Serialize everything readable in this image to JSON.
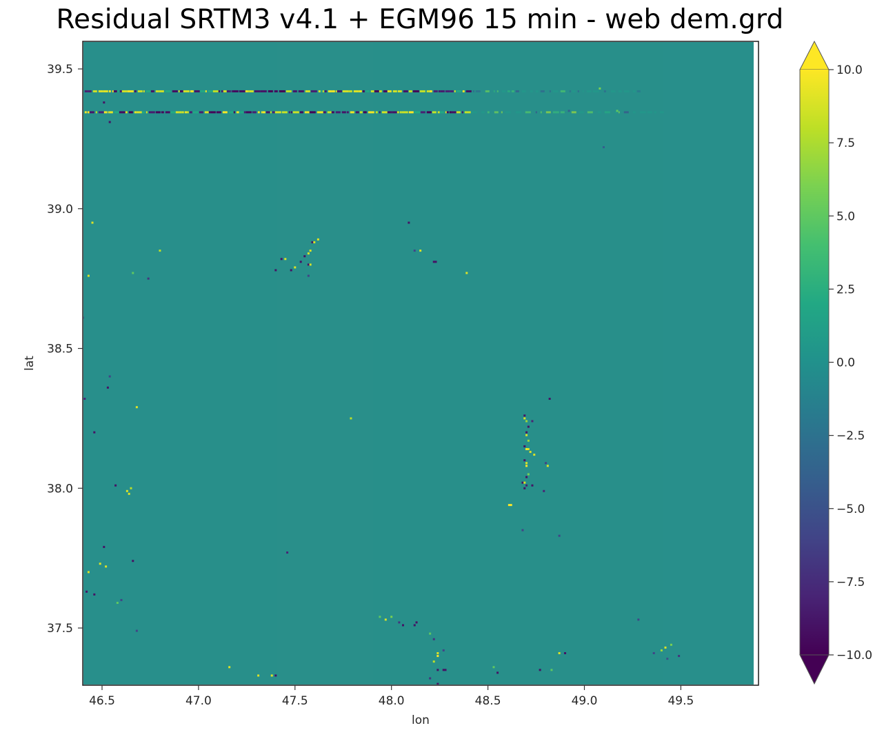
{
  "chart_data": {
    "type": "heatmap",
    "title": "Residual SRTM3 v4.1 + EGM96 15 min - web dem.grd",
    "xlabel": "lon",
    "ylabel": "lat",
    "xlim": [
      46.4,
      49.9
    ],
    "ylim": [
      37.3,
      39.6
    ],
    "xticks": [
      46.5,
      47.0,
      47.5,
      48.0,
      48.5,
      49.0,
      49.5
    ],
    "xtick_labels": [
      "46.5",
      "47.0",
      "47.5",
      "48.0",
      "48.5",
      "49.0",
      "49.5"
    ],
    "yticks": [
      37.5,
      38.0,
      38.5,
      39.0,
      39.5
    ],
    "ytick_labels": [
      "37.5",
      "38.0",
      "38.5",
      "39.0",
      "39.5"
    ],
    "colorbar": {
      "cmap": "viridis",
      "vmin": -10.0,
      "vmax": 10.0,
      "extend": "both",
      "ticks": [
        -10.0,
        -7.5,
        -5.0,
        -2.5,
        0.0,
        2.5,
        5.0,
        7.5,
        10.0
      ],
      "tick_labels": [
        "−10.0",
        "−7.5",
        "−5.0",
        "−2.5",
        "0.0",
        "2.5",
        "5.0",
        "7.5",
        "10.0"
      ]
    },
    "background_value": 0.0,
    "grid": false,
    "streaks": [
      {
        "lat": 39.42,
        "lon_start": 46.41,
        "lon_end": 49.3,
        "description": "alternating high/low residual row (strong west of ~48.4)"
      },
      {
        "lat": 39.345,
        "lon_start": 46.41,
        "lon_end": 49.4,
        "description": "alternating high/low residual row (strong west of ~48.4)"
      }
    ],
    "points": [
      {
        "lon": 46.51,
        "lat": 39.38,
        "v": -9
      },
      {
        "lon": 46.54,
        "lat": 39.31,
        "v": -9
      },
      {
        "lon": 46.45,
        "lat": 38.95,
        "v": 9
      },
      {
        "lon": 46.8,
        "lat": 38.85,
        "v": 8
      },
      {
        "lon": 46.43,
        "lat": 38.76,
        "v": 9
      },
      {
        "lon": 46.74,
        "lat": 38.75,
        "v": -7
      },
      {
        "lon": 46.66,
        "lat": 38.77,
        "v": 5
      },
      {
        "lon": 46.4,
        "lat": 38.61,
        "v": -8
      },
      {
        "lon": 46.53,
        "lat": 38.36,
        "v": -9
      },
      {
        "lon": 46.54,
        "lat": 38.4,
        "v": -6
      },
      {
        "lon": 46.68,
        "lat": 38.29,
        "v": 9
      },
      {
        "lon": 46.41,
        "lat": 38.32,
        "v": -8
      },
      {
        "lon": 46.46,
        "lat": 38.2,
        "v": -9
      },
      {
        "lon": 46.57,
        "lat": 38.01,
        "v": -9
      },
      {
        "lon": 46.63,
        "lat": 37.99,
        "v": 9
      },
      {
        "lon": 46.64,
        "lat": 37.98,
        "v": 9
      },
      {
        "lon": 46.65,
        "lat": 38.0,
        "v": 8
      },
      {
        "lon": 46.51,
        "lat": 37.79,
        "v": -9
      },
      {
        "lon": 46.49,
        "lat": 37.73,
        "v": 9
      },
      {
        "lon": 46.52,
        "lat": 37.72,
        "v": 9
      },
      {
        "lon": 46.43,
        "lat": 37.7,
        "v": 9
      },
      {
        "lon": 46.66,
        "lat": 37.74,
        "v": -9
      },
      {
        "lon": 46.42,
        "lat": 37.63,
        "v": -9
      },
      {
        "lon": 46.46,
        "lat": 37.62,
        "v": -9
      },
      {
        "lon": 46.6,
        "lat": 37.6,
        "v": -6
      },
      {
        "lon": 46.58,
        "lat": 37.59,
        "v": 5
      },
      {
        "lon": 46.68,
        "lat": 37.49,
        "v": -6
      },
      {
        "lon": 47.16,
        "lat": 37.36,
        "v": 9
      },
      {
        "lon": 47.31,
        "lat": 37.33,
        "v": 9
      },
      {
        "lon": 47.38,
        "lat": 37.33,
        "v": 9
      },
      {
        "lon": 47.4,
        "lat": 37.33,
        "v": -9
      },
      {
        "lon": 47.46,
        "lat": 37.77,
        "v": -8
      },
      {
        "lon": 47.43,
        "lat": 38.82,
        "v": -9
      },
      {
        "lon": 47.45,
        "lat": 38.82,
        "v": 9
      },
      {
        "lon": 47.4,
        "lat": 38.78,
        "v": -9
      },
      {
        "lon": 47.48,
        "lat": 38.78,
        "v": -9
      },
      {
        "lon": 47.5,
        "lat": 38.79,
        "v": 9
      },
      {
        "lon": 47.53,
        "lat": 38.81,
        "v": -9
      },
      {
        "lon": 47.55,
        "lat": 38.83,
        "v": -9
      },
      {
        "lon": 47.57,
        "lat": 38.84,
        "v": 9
      },
      {
        "lon": 47.58,
        "lat": 38.85,
        "v": 9
      },
      {
        "lon": 47.57,
        "lat": 38.8,
        "v": -9
      },
      {
        "lon": 47.58,
        "lat": 38.8,
        "v": 9
      },
      {
        "lon": 47.57,
        "lat": 38.76,
        "v": -6
      },
      {
        "lon": 47.59,
        "lat": 38.88,
        "v": -9
      },
      {
        "lon": 47.6,
        "lat": 38.88,
        "v": 9
      },
      {
        "lon": 47.62,
        "lat": 38.89,
        "v": 9
      },
      {
        "lon": 48.09,
        "lat": 38.95,
        "v": -9
      },
      {
        "lon": 48.12,
        "lat": 38.85,
        "v": -6
      },
      {
        "lon": 48.15,
        "lat": 38.85,
        "v": 9
      },
      {
        "lon": 48.22,
        "lat": 38.81,
        "v": -9
      },
      {
        "lon": 48.23,
        "lat": 38.81,
        "v": -9
      },
      {
        "lon": 48.39,
        "lat": 38.77,
        "v": 9
      },
      {
        "lon": 47.79,
        "lat": 38.25,
        "v": 8
      },
      {
        "lon": 48.82,
        "lat": 38.32,
        "v": -9
      },
      {
        "lon": 48.69,
        "lat": 38.26,
        "v": -9
      },
      {
        "lon": 48.69,
        "lat": 38.25,
        "v": 9
      },
      {
        "lon": 48.7,
        "lat": 38.24,
        "v": 7
      },
      {
        "lon": 48.73,
        "lat": 38.24,
        "v": -8
      },
      {
        "lon": 48.71,
        "lat": 38.22,
        "v": -9
      },
      {
        "lon": 48.7,
        "lat": 38.2,
        "v": -9
      },
      {
        "lon": 48.7,
        "lat": 38.19,
        "v": 9
      },
      {
        "lon": 48.71,
        "lat": 38.17,
        "v": 7
      },
      {
        "lon": 48.69,
        "lat": 38.15,
        "v": -9
      },
      {
        "lon": 48.7,
        "lat": 38.14,
        "v": 10
      },
      {
        "lon": 48.71,
        "lat": 38.14,
        "v": 9
      },
      {
        "lon": 48.72,
        "lat": 38.13,
        "v": 9
      },
      {
        "lon": 48.69,
        "lat": 38.1,
        "v": -9
      },
      {
        "lon": 48.7,
        "lat": 38.09,
        "v": 9
      },
      {
        "lon": 48.7,
        "lat": 38.08,
        "v": 10
      },
      {
        "lon": 48.74,
        "lat": 38.12,
        "v": 9
      },
      {
        "lon": 48.8,
        "lat": 38.09,
        "v": -6
      },
      {
        "lon": 48.81,
        "lat": 38.08,
        "v": 9
      },
      {
        "lon": 48.71,
        "lat": 38.05,
        "v": 6
      },
      {
        "lon": 48.7,
        "lat": 38.04,
        "v": -9
      },
      {
        "lon": 48.68,
        "lat": 38.02,
        "v": -9
      },
      {
        "lon": 48.69,
        "lat": 38.02,
        "v": 9
      },
      {
        "lon": 48.7,
        "lat": 38.01,
        "v": -8
      },
      {
        "lon": 48.69,
        "lat": 38.0,
        "v": -9
      },
      {
        "lon": 48.73,
        "lat": 38.01,
        "v": -9
      },
      {
        "lon": 48.79,
        "lat": 37.99,
        "v": -8
      },
      {
        "lon": 48.61,
        "lat": 37.94,
        "v": 10
      },
      {
        "lon": 48.62,
        "lat": 37.94,
        "v": 10
      },
      {
        "lon": 48.68,
        "lat": 37.85,
        "v": -6
      },
      {
        "lon": 48.87,
        "lat": 37.83,
        "v": -6
      },
      {
        "lon": 47.94,
        "lat": 37.54,
        "v": 5
      },
      {
        "lon": 47.97,
        "lat": 37.53,
        "v": 9
      },
      {
        "lon": 48.0,
        "lat": 37.54,
        "v": 6
      },
      {
        "lon": 48.04,
        "lat": 37.52,
        "v": -7
      },
      {
        "lon": 48.06,
        "lat": 37.51,
        "v": -9
      },
      {
        "lon": 48.12,
        "lat": 37.51,
        "v": -9
      },
      {
        "lon": 48.13,
        "lat": 37.52,
        "v": -9
      },
      {
        "lon": 48.2,
        "lat": 37.48,
        "v": 5
      },
      {
        "lon": 48.22,
        "lat": 37.46,
        "v": -7
      },
      {
        "lon": 48.27,
        "lat": 37.42,
        "v": -6
      },
      {
        "lon": 48.24,
        "lat": 37.41,
        "v": 9
      },
      {
        "lon": 48.24,
        "lat": 37.4,
        "v": 10
      },
      {
        "lon": 48.22,
        "lat": 37.38,
        "v": 8
      },
      {
        "lon": 48.24,
        "lat": 37.35,
        "v": -9
      },
      {
        "lon": 48.27,
        "lat": 37.35,
        "v": -9
      },
      {
        "lon": 48.28,
        "lat": 37.35,
        "v": -9
      },
      {
        "lon": 48.2,
        "lat": 37.32,
        "v": -7
      },
      {
        "lon": 48.24,
        "lat": 37.3,
        "v": -9
      },
      {
        "lon": 48.53,
        "lat": 37.36,
        "v": 5
      },
      {
        "lon": 48.55,
        "lat": 37.34,
        "v": -9
      },
      {
        "lon": 48.77,
        "lat": 37.35,
        "v": -9
      },
      {
        "lon": 48.87,
        "lat": 37.41,
        "v": 9
      },
      {
        "lon": 48.9,
        "lat": 37.41,
        "v": -9
      },
      {
        "lon": 48.83,
        "lat": 37.35,
        "v": 5
      },
      {
        "lon": 49.28,
        "lat": 37.53,
        "v": -6
      },
      {
        "lon": 49.36,
        "lat": 37.41,
        "v": -6
      },
      {
        "lon": 49.4,
        "lat": 37.42,
        "v": 7
      },
      {
        "lon": 49.42,
        "lat": 37.43,
        "v": 9
      },
      {
        "lon": 49.45,
        "lat": 37.44,
        "v": 6
      },
      {
        "lon": 49.49,
        "lat": 37.4,
        "v": -7
      },
      {
        "lon": 49.43,
        "lat": 37.39,
        "v": -5
      },
      {
        "lon": 49.1,
        "lat": 39.22,
        "v": -4
      },
      {
        "lon": 49.17,
        "lat": 39.35,
        "v": 5
      },
      {
        "lon": 49.08,
        "lat": 39.43,
        "v": 6
      },
      {
        "lon": 48.92,
        "lat": 39.35,
        "v": -4
      }
    ]
  }
}
